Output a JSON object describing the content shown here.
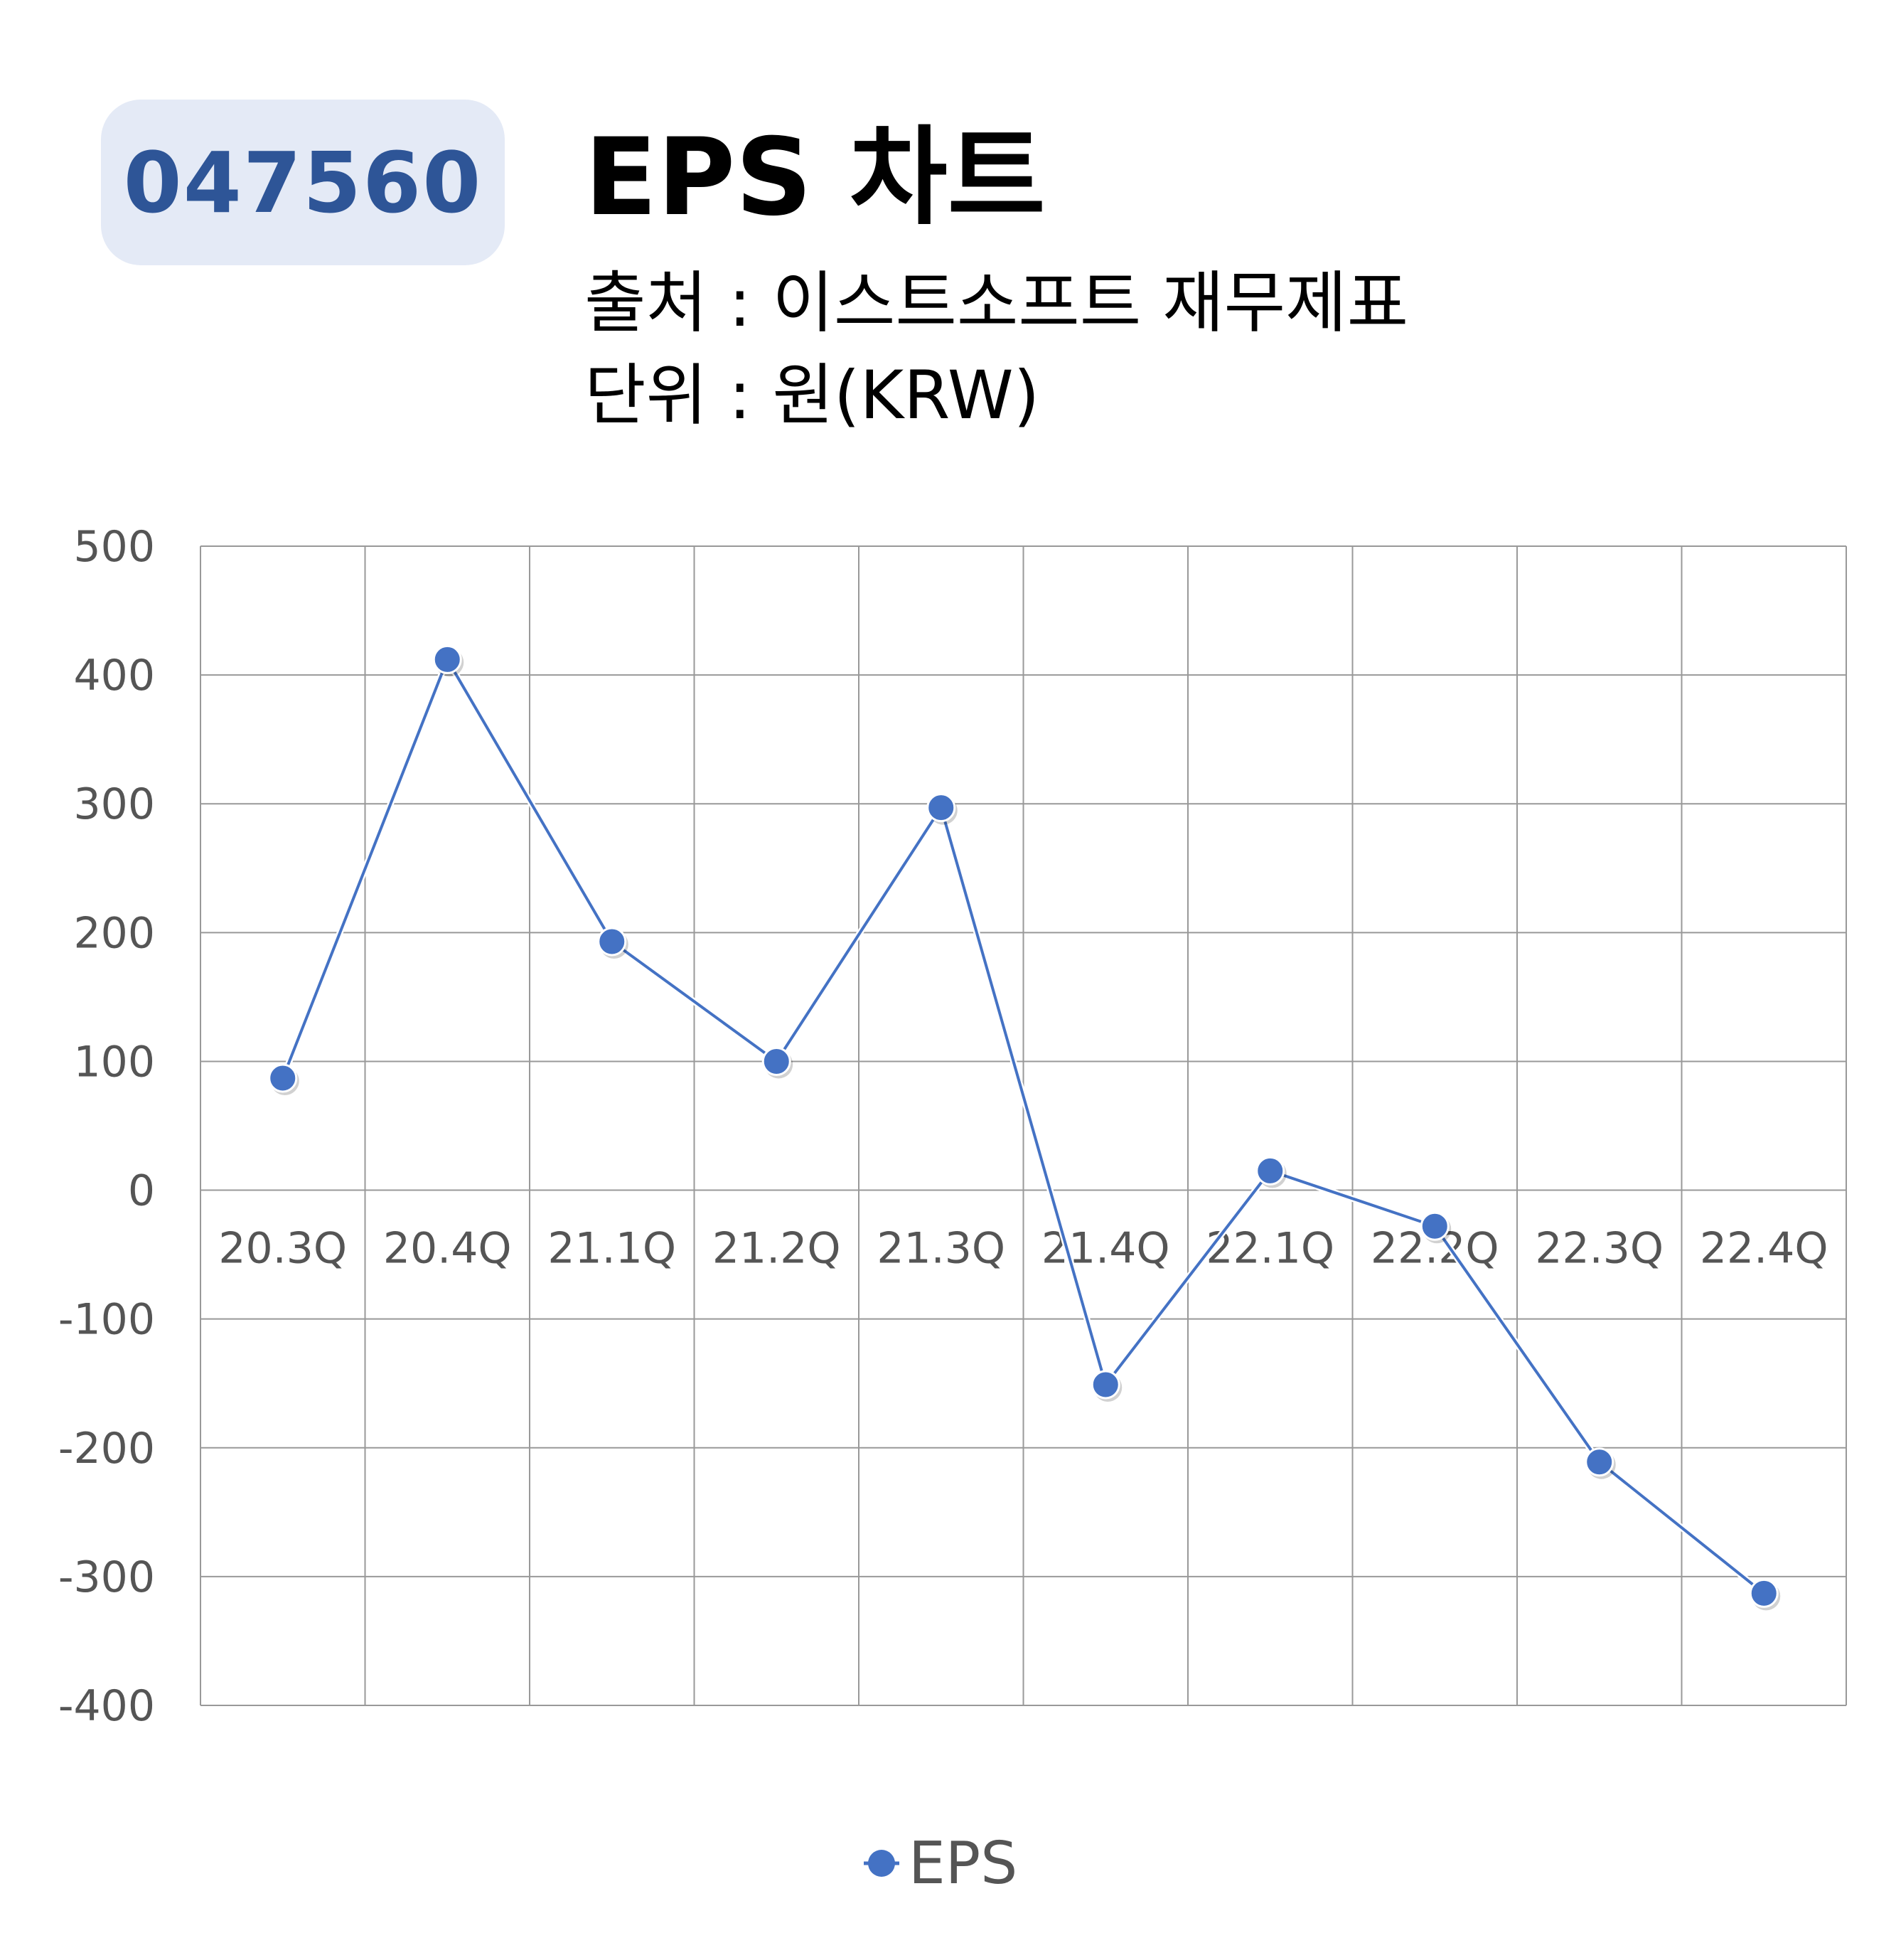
{
  "badge": {
    "code": "047560"
  },
  "header": {
    "title": "EPS 차트",
    "source": "출처 : 이스트소프트 재무제표",
    "unit": "단위 : 원(KRW)"
  },
  "colors": {
    "series": "#4472c4",
    "badge_bg": "#e4eaf6",
    "badge_text": "#2e5597",
    "grid": "#999999"
  },
  "chart_data": {
    "type": "line",
    "categories": [
      "20.3Q",
      "20.4Q",
      "21.1Q",
      "21.2Q",
      "21.3Q",
      "21.4Q",
      "22.1Q",
      "22.2Q",
      "22.3Q",
      "22.4Q"
    ],
    "series": [
      {
        "name": "EPS",
        "values": [
          87,
          412,
          193,
          100,
          297,
          -151,
          15,
          -28,
          -211,
          -313
        ]
      }
    ],
    "ylim": [
      -400,
      500
    ],
    "yticks": [
      "-400",
      "-300",
      "-200",
      "-100",
      "0",
      "100",
      "200",
      "300",
      "400",
      "500"
    ],
    "grid": true,
    "legend": "bottom-center"
  }
}
